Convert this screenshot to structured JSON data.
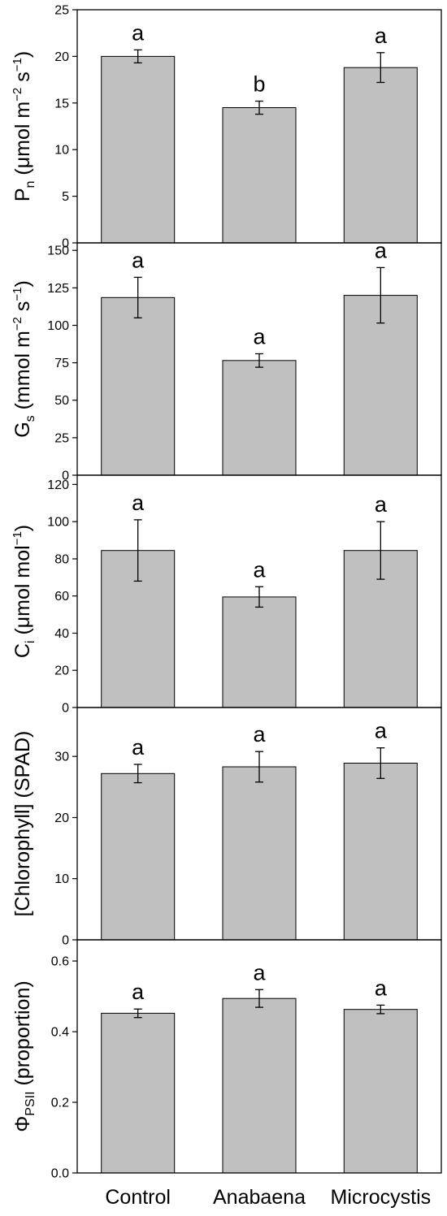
{
  "chart_data": [
    {
      "type": "bar",
      "categories": [
        "Control",
        "Anabaena",
        "Microcystis"
      ],
      "values": [
        20.0,
        14.5,
        18.8
      ],
      "errors": [
        0.7,
        0.7,
        1.6
      ],
      "significance": [
        "a",
        "b",
        "a"
      ],
      "ylabel_main": "P",
      "ylabel_sub": "n",
      "ylabel_parts": [
        " (μmol m",
        "−2",
        " s",
        "−1",
        ")"
      ],
      "ylim": [
        0,
        25
      ],
      "yticks": [
        0,
        5,
        10,
        15,
        20,
        25
      ]
    },
    {
      "type": "bar",
      "categories": [
        "Control",
        "Anabaena",
        "Microcystis"
      ],
      "values": [
        118.5,
        76.5,
        120.0
      ],
      "errors": [
        13.5,
        4.5,
        18.5
      ],
      "significance": [
        "a",
        "a",
        "a"
      ],
      "ylabel_main": "G",
      "ylabel_sub": "s",
      "ylabel_parts": [
        " (mmol m",
        "−2",
        " s",
        "−1",
        ")"
      ],
      "ylim": [
        0,
        155
      ],
      "yticks": [
        0,
        25,
        50,
        75,
        100,
        125,
        150
      ]
    },
    {
      "type": "bar",
      "categories": [
        "Control",
        "Anabaena",
        "Microcystis"
      ],
      "values": [
        84.5,
        59.5,
        84.5
      ],
      "errors": [
        16.5,
        5.5,
        15.5
      ],
      "significance": [
        "a",
        "a",
        "a"
      ],
      "ylabel_main": "C",
      "ylabel_sub": "i",
      "ylabel_parts": [
        " (μmol mol",
        "−1",
        ")"
      ],
      "ylim": [
        0,
        125
      ],
      "yticks": [
        0,
        20,
        40,
        60,
        80,
        100,
        120
      ]
    },
    {
      "type": "bar",
      "categories": [
        "Control",
        "Anabaena",
        "Microcystis"
      ],
      "values": [
        27.2,
        28.3,
        28.9
      ],
      "errors": [
        1.5,
        2.5,
        2.5
      ],
      "significance": [
        "a",
        "a",
        "a"
      ],
      "ylabel_main": "[Chlorophyll] (SPAD)",
      "ylabel_sub": "",
      "ylabel_parts": [],
      "ylim": [
        0,
        38
      ],
      "yticks": [
        0,
        10,
        20,
        30
      ]
    },
    {
      "type": "bar",
      "categories": [
        "Control",
        "Anabaena",
        "Microcystis"
      ],
      "values": [
        0.452,
        0.494,
        0.463
      ],
      "errors": [
        0.012,
        0.025,
        0.012
      ],
      "significance": [
        "a",
        "a",
        "a"
      ],
      "ylabel_main": "Φ",
      "ylabel_sub": "PSII",
      "ylabel_parts": [
        " (proportion)"
      ],
      "ylim": [
        0,
        0.66
      ],
      "yticks": [
        0.0,
        0.2,
        0.4,
        0.6
      ]
    }
  ]
}
